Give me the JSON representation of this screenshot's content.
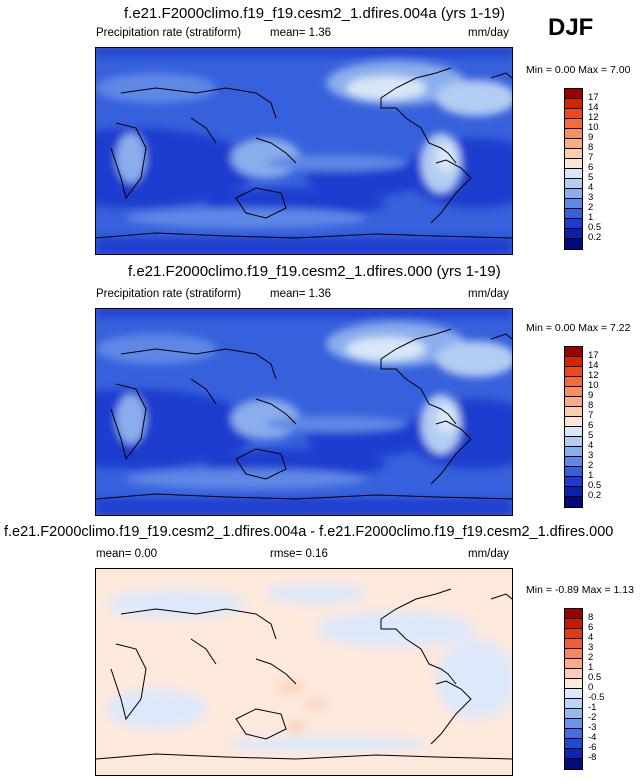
{
  "season": "DJF",
  "panels": [
    {
      "title": "f.e21.F2000climo.f19_f19.cesm2_1.dfires.004a (yrs 1-19)",
      "left_label": "Precipitation rate (stratiform)",
      "stat1": "mean=  1.36",
      "stat2": "",
      "units": "mm/day",
      "minmax": "Min =  0.00 Max =   7.00",
      "levels": [
        "17",
        "14",
        "12",
        "10",
        "9",
        "8",
        "7",
        "6",
        "5",
        "4",
        "3",
        "2",
        "1",
        "0.5",
        "0.2"
      ],
      "colors": [
        "#9a0000",
        "#d42500",
        "#ea4a1c",
        "#f46b3c",
        "#f79060",
        "#f9ad85",
        "#fbcdb0",
        "#fbe6d4",
        "#d8e6f8",
        "#b3ccf2",
        "#8aaeec",
        "#5f88e6",
        "#3761dc",
        "#1b3ccf",
        "#0b20ab",
        "#010a78"
      ]
    },
    {
      "title": "f.e21.F2000climo.f19_f19.cesm2_1.dfires.000 (yrs 1-19)",
      "left_label": "Precipitation rate (stratiform)",
      "stat1": "mean=  1.36",
      "stat2": "",
      "units": "mm/day",
      "minmax": "Min =  0.00 Max =   7.22",
      "levels": [
        "17",
        "14",
        "12",
        "10",
        "9",
        "8",
        "7",
        "6",
        "5",
        "4",
        "3",
        "2",
        "1",
        "0.5",
        "0.2"
      ],
      "colors": [
        "#9a0000",
        "#d42500",
        "#ea4a1c",
        "#f46b3c",
        "#f79060",
        "#f9ad85",
        "#fbcdb0",
        "#fbe6d4",
        "#d8e6f8",
        "#b3ccf2",
        "#8aaeec",
        "#5f88e6",
        "#3761dc",
        "#1b3ccf",
        "#0b20ab",
        "#010a78"
      ]
    },
    {
      "title": "f.e21.F2000climo.f19_f19.cesm2_1.dfires.004a - f.e21.F2000climo.f19_f19.cesm2_1.dfires.000",
      "left_label": "mean=  0.00",
      "stat1": "",
      "stat2": "rmse=  0.16",
      "units": "mm/day",
      "minmax": "Min = -0.89 Max =   1.13",
      "levels": [
        "8",
        "6",
        "4",
        "3",
        "2",
        "1",
        "0.5",
        "0",
        "-0.5",
        "-1",
        "-2",
        "-3",
        "-4",
        "-6",
        "-8"
      ],
      "colors": [
        "#9a0000",
        "#c41c00",
        "#de3c14",
        "#ef5e34",
        "#f58660",
        "#f9ac8a",
        "#fbcdb3",
        "#fde8dc",
        "#dde9fa",
        "#bdd3f5",
        "#95b8ef",
        "#6a95e8",
        "#4270df",
        "#2149d2",
        "#0d26b2",
        "#020c7d"
      ]
    }
  ],
  "chart_data": [
    {
      "type": "heatmap",
      "title": "f.e21.F2000climo.f19_f19.cesm2_1.dfires.004a (yrs 1-19)",
      "variable": "Precipitation rate (stratiform)",
      "units": "mm/day",
      "mean": 1.36,
      "min": 0.0,
      "max": 7.0,
      "contour_levels": [
        0.2,
        0.5,
        1,
        2,
        3,
        4,
        5,
        6,
        7,
        8,
        9,
        10,
        12,
        14,
        17
      ]
    },
    {
      "type": "heatmap",
      "title": "f.e21.F2000climo.f19_f19.cesm2_1.dfires.000 (yrs 1-19)",
      "variable": "Precipitation rate (stratiform)",
      "units": "mm/day",
      "mean": 1.36,
      "min": 0.0,
      "max": 7.22,
      "contour_levels": [
        0.2,
        0.5,
        1,
        2,
        3,
        4,
        5,
        6,
        7,
        8,
        9,
        10,
        12,
        14,
        17
      ]
    },
    {
      "type": "heatmap",
      "title": "f.e21.F2000climo.f19_f19.cesm2_1.dfires.004a - f.e21.F2000climo.f19_f19.cesm2_1.dfires.000",
      "units": "mm/day",
      "mean": 0.0,
      "rmse": 0.16,
      "min": -0.89,
      "max": 1.13,
      "contour_levels": [
        -8,
        -6,
        -4,
        -3,
        -2,
        -1,
        -0.5,
        0,
        0.5,
        1,
        2,
        3,
        4,
        6,
        8
      ]
    }
  ]
}
